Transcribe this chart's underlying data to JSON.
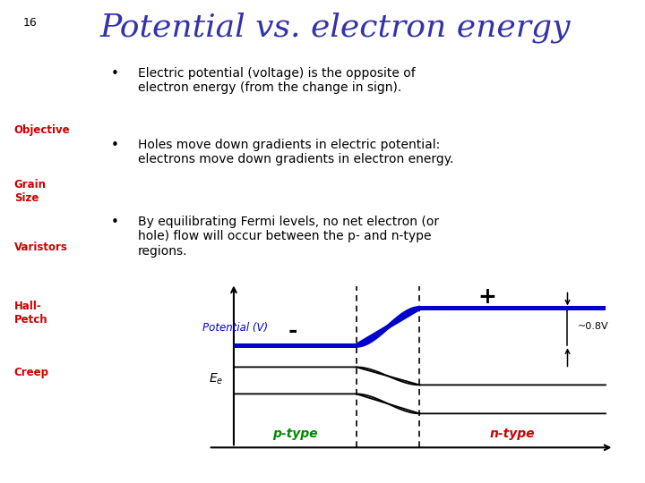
{
  "title": "Potential vs. electron energy",
  "slide_number": "16",
  "sidebar_items": [
    "Objective",
    "Grain\nSize",
    "Varistors",
    "Hall-\nPetch",
    "Creep"
  ],
  "sidebar_color": "#a8a8a8",
  "sidebar_text_color": "#cc0000",
  "title_color": "#3333aa",
  "bullet_text_color": "#000000",
  "bullet_points": [
    "Electric potential (voltage) is the opposite of\nelectron energy (from the change in sign).",
    "Holes move down gradients in electric potential:\nelectrons move down gradients in electron energy.",
    "By equilibrating Fermi levels, no net electron (or\nhole) flow will occur between the p- and n-type\nregions."
  ],
  "diagram": {
    "potential_line_color": "#0000cc",
    "energy_line_color": "#000000",
    "p_type_color": "#008800",
    "n_type_color": "#cc0000",
    "potential_label_color": "#0000cc",
    "label_potential": "Potential (V)",
    "label_p": "p-type",
    "label_n": "n-type",
    "label_plus": "+",
    "label_minus": "-",
    "label_08v": "~0.8V"
  },
  "background_color": "#ffffff"
}
